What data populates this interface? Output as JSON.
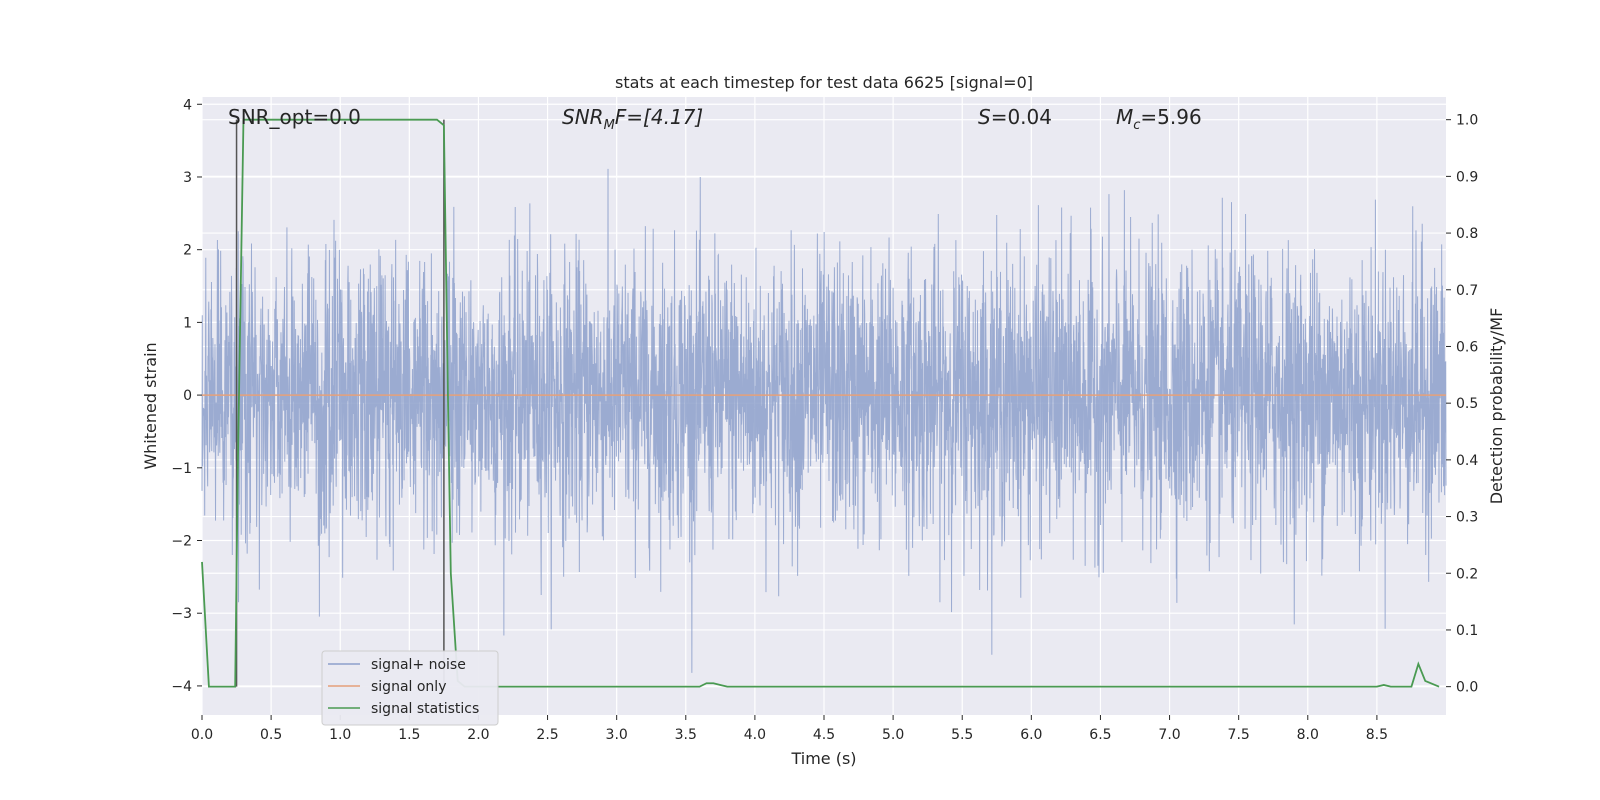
{
  "chart_data": {
    "type": "line",
    "title": "stats at each timestep for test data 6625 [signal=0]",
    "xlabel": "Time (s)",
    "ylabel_left": "Whitened strain",
    "ylabel_right": "Detection probability/MF",
    "xlim": [
      0.0,
      9.0
    ],
    "ylim_left": [
      -4.4,
      4.1
    ],
    "ylim_right": [
      -0.05,
      1.04
    ],
    "x_ticks": [
      "0.0",
      "0.5",
      "1.0",
      "1.5",
      "2.0",
      "2.5",
      "3.0",
      "3.5",
      "4.0",
      "4.5",
      "5.0",
      "5.5",
      "6.0",
      "6.5",
      "7.0",
      "7.5",
      "8.0",
      "8.5"
    ],
    "y_left_ticks": [
      "4",
      "3",
      "2",
      "1",
      "0",
      "−1",
      "−2",
      "−3",
      "−4"
    ],
    "y_right_ticks": [
      "1.0",
      "0.9",
      "0.8",
      "0.7",
      "0.6",
      "0.5",
      "0.4",
      "0.3",
      "0.2",
      "0.1",
      "0.0"
    ],
    "grid": true,
    "annotations": {
      "snr_opt": "SNR_opt=0.0",
      "snr_mf_sym": "SNR",
      "snr_mf_sub": "M",
      "snr_mf_rest": "F=[4.17]",
      "s_sym": "S",
      "s_val": "=0.04",
      "mc_sym": "M",
      "mc_sub": "c",
      "mc_val": "=5.96"
    },
    "vlines": [
      0.25,
      1.75
    ],
    "series": [
      {
        "name": "signal+ noise",
        "color": "#8da0cb",
        "description_noise": "whitened noise, roughly Gaussian, amplitude within about -4 to 3.3",
        "peak_max": 3.35,
        "peak_min": -4.0
      },
      {
        "name": "signal only",
        "color": "#e5a07a",
        "values_constant": 0.0
      },
      {
        "name": "signal statistics",
        "color": "#4a9a52",
        "axis": "right",
        "x": [
          0.0,
          0.05,
          0.1,
          0.15,
          0.2,
          0.24,
          0.26,
          0.3,
          0.35,
          0.5,
          1.0,
          1.5,
          1.7,
          1.75,
          1.78,
          1.8,
          1.85,
          1.9,
          2.0,
          2.5,
          3.0,
          3.5,
          3.6,
          3.65,
          3.7,
          3.75,
          3.8,
          4.0,
          5.0,
          6.0,
          7.0,
          8.0,
          8.5,
          8.55,
          8.6,
          8.75,
          8.8,
          8.85,
          8.9,
          8.95
        ],
        "y": [
          0.22,
          0.0,
          0.0,
          0.0,
          0.0,
          0.0,
          0.4,
          1.0,
          1.0,
          1.0,
          1.0,
          1.0,
          1.0,
          0.99,
          0.5,
          0.2,
          0.01,
          0.0,
          0.0,
          0.0,
          0.0,
          0.0,
          0.0,
          0.006,
          0.006,
          0.003,
          0.0,
          0.0,
          0.0,
          0.0,
          0.0,
          0.0,
          0.0,
          0.003,
          0.0,
          0.0,
          0.04,
          0.01,
          0.005,
          0.0
        ]
      }
    ],
    "legend_placement": "lower-left"
  },
  "colors": {
    "plot_bg": "#eaeaf2",
    "grid": "#ffffff",
    "noise": "#8da0cb",
    "signal": "#e5a07a",
    "stats": "#4a9a52",
    "vline": "#555555"
  }
}
